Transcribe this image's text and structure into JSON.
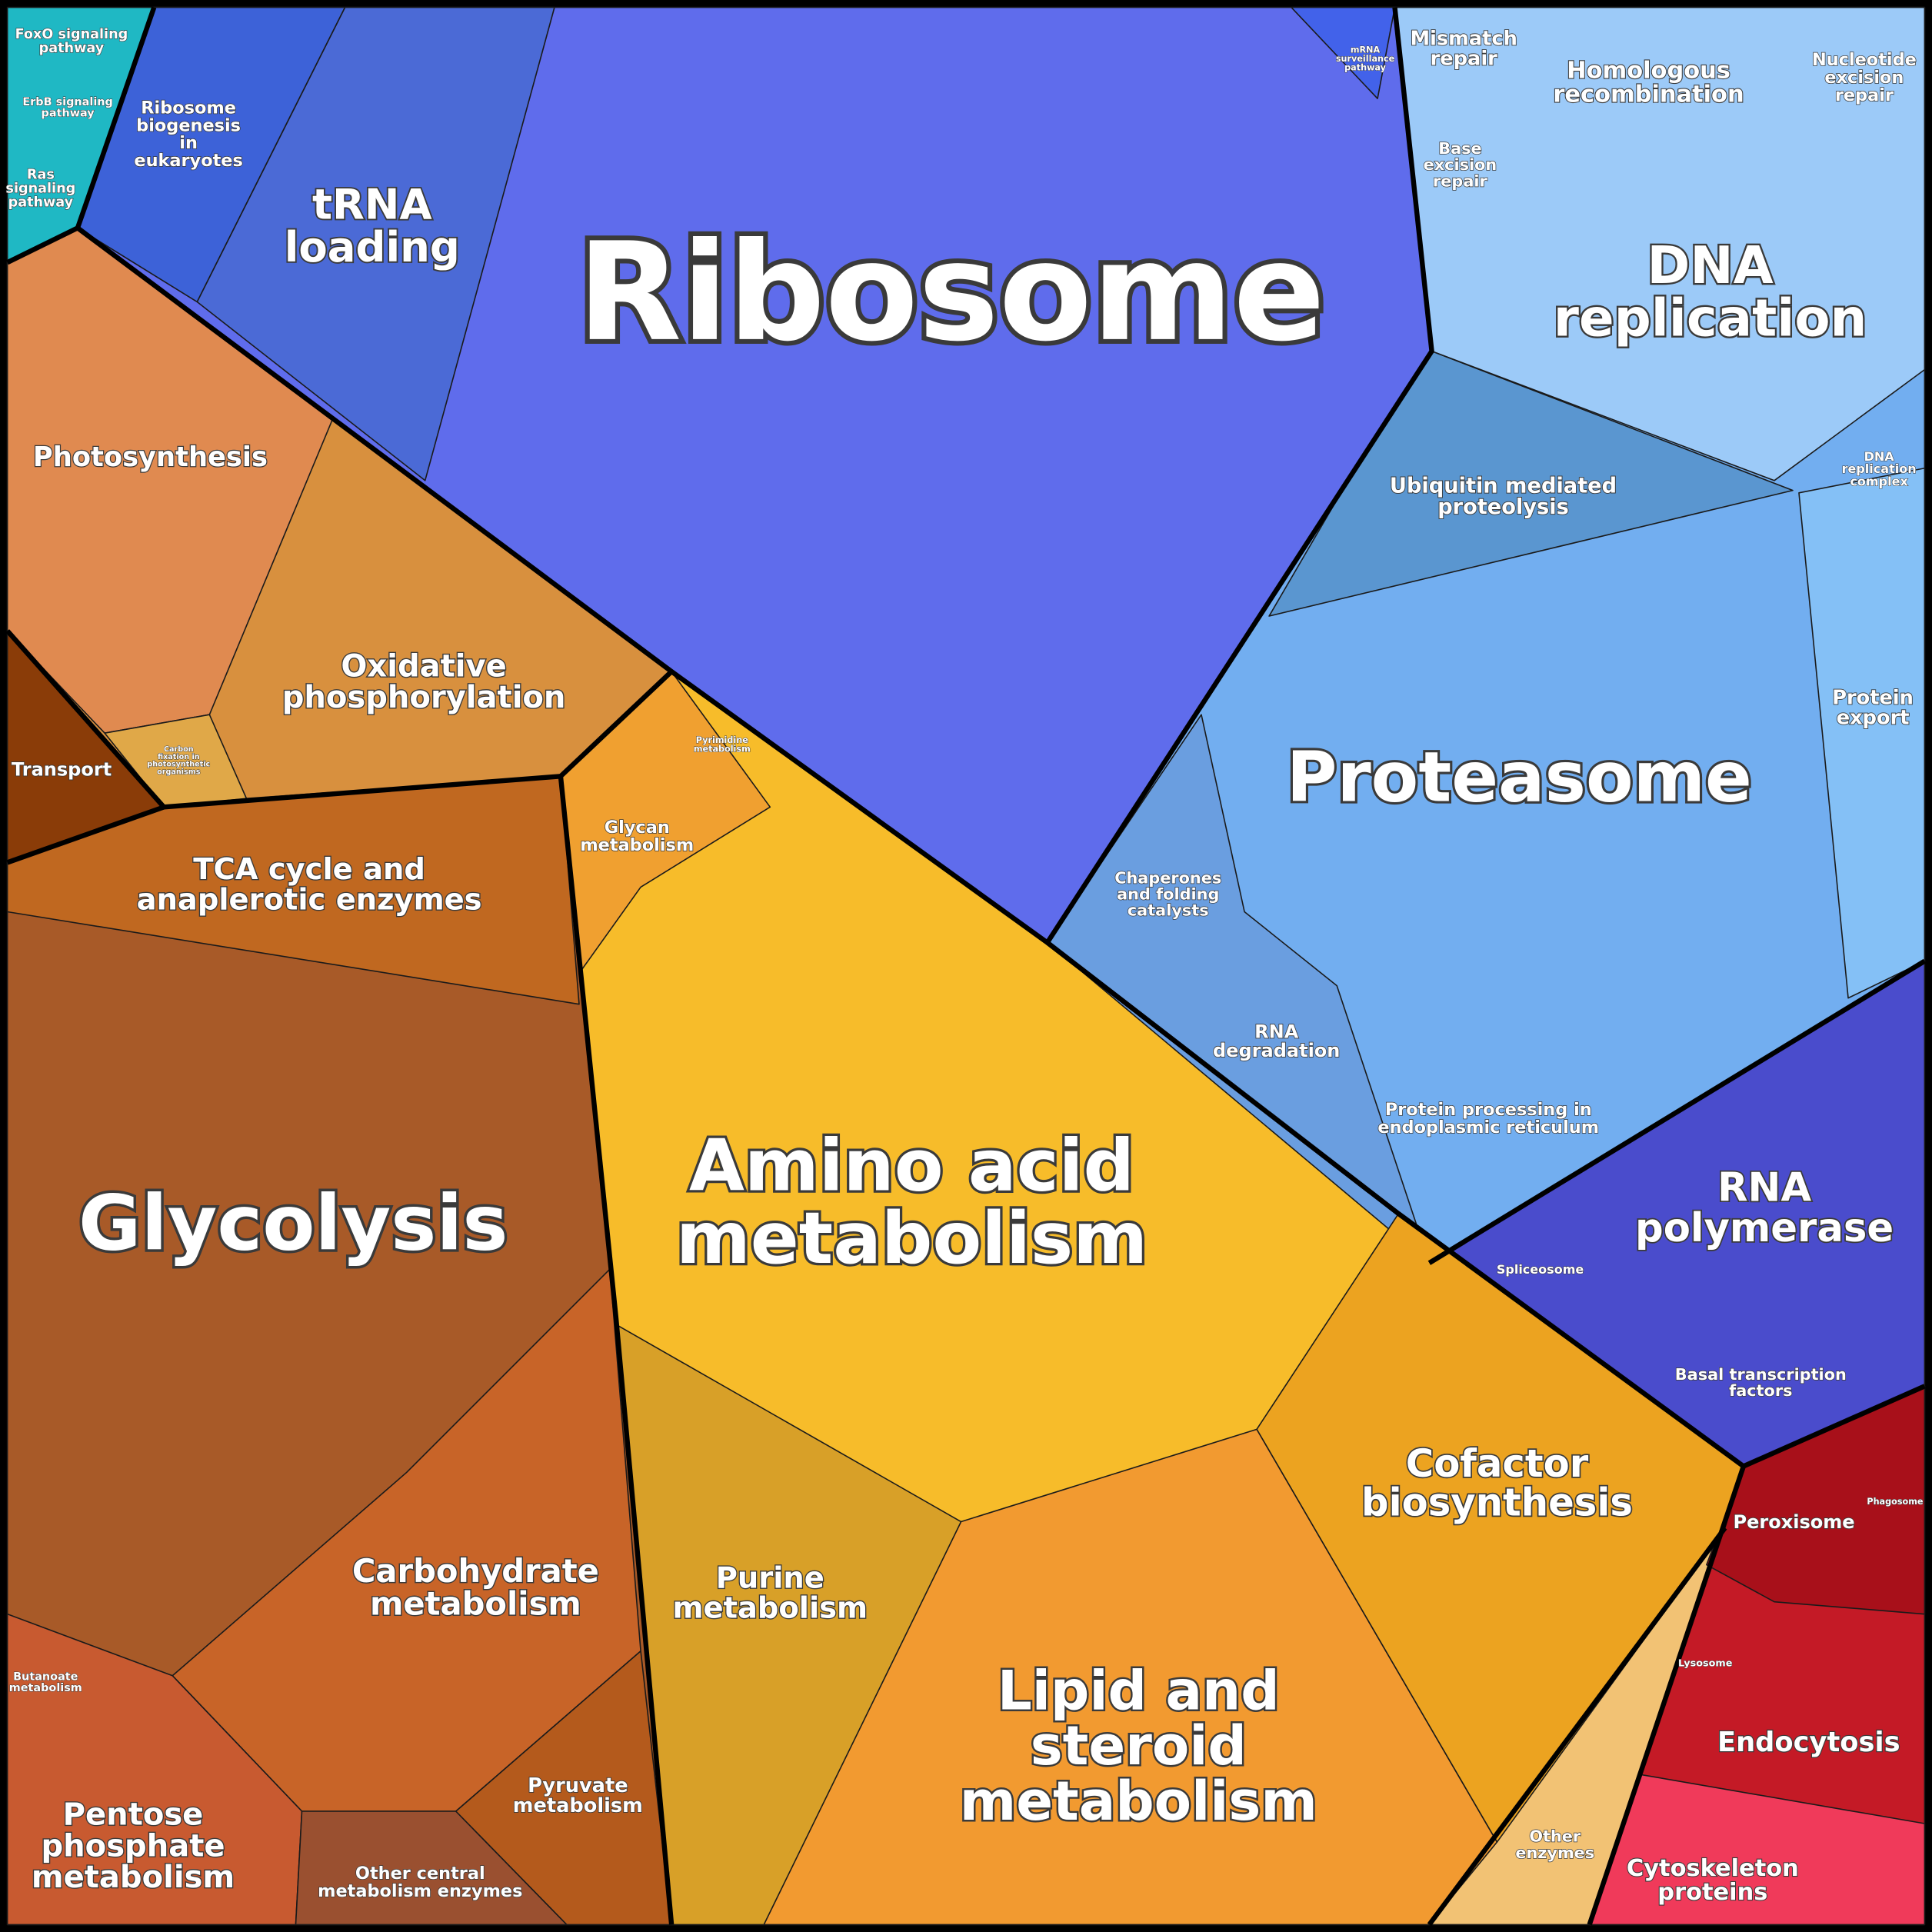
{
  "labels": [
    {
      "lines": [
        "FoxO signaling",
        "pathway"
      ]
    },
    {
      "lines": [
        "ErbB signaling",
        "pathway"
      ]
    },
    {
      "lines": [
        "Ras",
        "signaling",
        "pathway"
      ]
    },
    {
      "lines": [
        "Ribosome",
        "biogenesis",
        "in",
        "eukaryotes"
      ]
    },
    {
      "lines": [
        "tRNA",
        "loading"
      ]
    },
    {
      "lines": [
        "Ribosome"
      ]
    },
    {
      "lines": [
        "mRNA",
        "surveillance",
        "pathway"
      ]
    },
    {
      "lines": [
        "Mismatch",
        "repair"
      ]
    },
    {
      "lines": [
        "Homologous",
        "recombination"
      ]
    },
    {
      "lines": [
        "Nucleotide",
        "excision",
        "repair"
      ]
    },
    {
      "lines": [
        "Base",
        "excision",
        "repair"
      ]
    },
    {
      "lines": [
        "DNA",
        "replication"
      ]
    },
    {
      "lines": [
        "DNA",
        "replication",
        "complex"
      ]
    },
    {
      "lines": [
        "Ubiquitin mediated",
        "proteolysis"
      ]
    },
    {
      "lines": [
        "Protein",
        "export"
      ]
    },
    {
      "lines": [
        "Proteasome"
      ]
    },
    {
      "lines": [
        "Chaperones",
        "and folding",
        "catalysts"
      ]
    },
    {
      "lines": [
        "RNA",
        "degradation"
      ]
    },
    {
      "lines": [
        "Protein processing in",
        "endoplasmic reticulum"
      ]
    },
    {
      "lines": [
        "RNA",
        "polymerase"
      ]
    },
    {
      "lines": [
        "Spliceosome"
      ]
    },
    {
      "lines": [
        "Basal transcription",
        "factors"
      ]
    },
    {
      "lines": [
        "Photosynthesis"
      ]
    },
    {
      "lines": [
        "Oxidative",
        "phosphorylation"
      ]
    },
    {
      "lines": [
        "Carbon",
        "fixation in",
        "photosynthetic",
        "organisms"
      ]
    },
    {
      "lines": [
        "Transport"
      ]
    },
    {
      "lines": [
        "Pyrimidine",
        "metabolism"
      ]
    },
    {
      "lines": [
        "Glycan",
        "metabolism"
      ]
    },
    {
      "lines": [
        "TCA cycle and",
        "anaplerotic enzymes"
      ]
    },
    {
      "lines": [
        "Amino acid",
        "metabolism"
      ]
    },
    {
      "lines": [
        "Glycolysis"
      ]
    },
    {
      "lines": [
        "Cofactor",
        "biosynthesis"
      ]
    },
    {
      "lines": [
        "Peroxisome"
      ]
    },
    {
      "lines": [
        "Phagosome"
      ]
    },
    {
      "lines": [
        "Carbohydrate",
        "metabolism"
      ]
    },
    {
      "lines": [
        "Purine",
        "metabolism"
      ]
    },
    {
      "lines": [
        "Lysosome"
      ]
    },
    {
      "lines": [
        "Endocytosis"
      ]
    },
    {
      "lines": [
        "Lipid and",
        "steroid",
        "metabolism"
      ]
    },
    {
      "lines": [
        "Butanoate",
        "metabolism"
      ]
    },
    {
      "lines": [
        "Pentose",
        "phosphate",
        "metabolism"
      ]
    },
    {
      "lines": [
        "Pyruvate",
        "metabolism"
      ]
    },
    {
      "lines": [
        "Other central",
        "metabolism enzymes"
      ]
    },
    {
      "lines": [
        "Other",
        "enzymes"
      ]
    },
    {
      "lines": [
        "Cytoskeleton",
        "proteins"
      ]
    }
  ]
}
